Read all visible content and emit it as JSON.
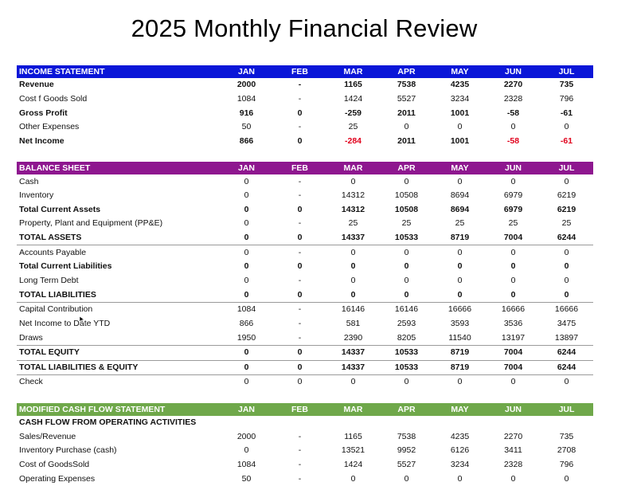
{
  "title": "2025 Monthly Financial Review",
  "colors": {
    "income_header": "#0a16d8",
    "balance_header": "#8e178f",
    "cashflow_header": "#6fa84a",
    "negative": "#e0001b"
  },
  "months": [
    "JAN",
    "FEB",
    "MAR",
    "APR",
    "MAY",
    "JUN",
    "JUL"
  ],
  "income_statement": {
    "header": "INCOME STATEMENT",
    "rows": [
      {
        "label": "Revenue",
        "bold": true,
        "values": [
          "2000",
          "-",
          "1165",
          "7538",
          "4235",
          "2270",
          "735"
        ]
      },
      {
        "label": "Cost f Goods Sold",
        "values": [
          "1084",
          "-",
          "1424",
          "5527",
          "3234",
          "2328",
          "796"
        ]
      },
      {
        "label": "Gross Profit",
        "bold": true,
        "values": [
          "916",
          "0",
          "-259",
          "2011",
          "1001",
          "-58",
          "-61"
        ]
      },
      {
        "label": "Other Expenses",
        "values": [
          "50",
          "-",
          "25",
          "0",
          "0",
          "0",
          "0"
        ]
      },
      {
        "label": "Net Income",
        "bold": true,
        "values": [
          "866",
          "0",
          "-284",
          "2011",
          "1001",
          "-58",
          "-61"
        ],
        "red_negatives": true
      }
    ]
  },
  "balance_sheet": {
    "header": "BALANCE SHEET",
    "rows": [
      {
        "label": "Cash",
        "values": [
          "0",
          "-",
          "0",
          "0",
          "0",
          "0",
          "0"
        ]
      },
      {
        "label": "Inventory",
        "values": [
          "0",
          "-",
          "14312",
          "10508",
          "8694",
          "6979",
          "6219"
        ]
      },
      {
        "label": "Total Current Assets",
        "bold": true,
        "values": [
          "0",
          "0",
          "14312",
          "10508",
          "8694",
          "6979",
          "6219"
        ]
      },
      {
        "label": "Property, Plant and Equipment (PP&E)",
        "values": [
          "0",
          "-",
          "25",
          "25",
          "25",
          "25",
          "25"
        ]
      },
      {
        "label": "TOTAL  ASSETS",
        "bold": true,
        "sep": true,
        "values": [
          "0",
          "0",
          "14337",
          "10533",
          "8719",
          "7004",
          "6244"
        ]
      },
      {
        "label": "Accounts Payable",
        "values": [
          "0",
          "-",
          "0",
          "0",
          "0",
          "0",
          "0"
        ]
      },
      {
        "label": "Total Current Liabilities",
        "bold": true,
        "values": [
          "0",
          "0",
          "0",
          "0",
          "0",
          "0",
          "0"
        ]
      },
      {
        "label": "Long Term Debt",
        "values": [
          "0",
          "-",
          "0",
          "0",
          "0",
          "0",
          "0"
        ]
      },
      {
        "label": "TOTAL LIABILITIES",
        "bold": true,
        "sep": true,
        "values": [
          "0",
          "0",
          "0",
          "0",
          "0",
          "0",
          "0"
        ]
      },
      {
        "label": "Capital Contribution",
        "values": [
          "1084",
          "-",
          "16146",
          "16146",
          "16666",
          "16666",
          "16666"
        ]
      },
      {
        "label": "Net Income to Date YTD",
        "values": [
          "866",
          "-",
          "581",
          "2593",
          "3593",
          "3536",
          "3475"
        ]
      },
      {
        "label": "Draws",
        "sep": true,
        "values": [
          "1950",
          "-",
          "2390",
          "8205",
          "11540",
          "13197",
          "13897"
        ]
      },
      {
        "label": "TOTAL EQUITY",
        "bold": true,
        "sep": true,
        "values": [
          "0",
          "0",
          "14337",
          "10533",
          "8719",
          "7004",
          "6244"
        ]
      },
      {
        "label": "TOTAL LIABILITIES & EQUITY",
        "bold": true,
        "sep": true,
        "values": [
          "0",
          "0",
          "14337",
          "10533",
          "8719",
          "7004",
          "6244"
        ]
      },
      {
        "label": "Check",
        "values": [
          "0",
          "0",
          "0",
          "0",
          "0",
          "0",
          "0"
        ]
      }
    ]
  },
  "cash_flow": {
    "header": "MODIFIED CASH FLOW STATEMENT",
    "subheader": "CASH FLOW FROM OPERATING ACTIVITIES",
    "rows": [
      {
        "label": "Sales/Revenue",
        "values": [
          "2000",
          "-",
          "1165",
          "7538",
          "4235",
          "2270",
          "735"
        ]
      },
      {
        "label": "Inventory Purchase (cash)",
        "values": [
          "0",
          "-",
          "13521",
          "9952",
          "6126",
          "3411",
          "2708"
        ]
      },
      {
        "label": "Cost of GoodsSold",
        "values": [
          "1084",
          "-",
          "1424",
          "5527",
          "3234",
          "2328",
          "796"
        ]
      },
      {
        "label": "Operating Expenses",
        "values": [
          "50",
          "-",
          "0",
          "0",
          "0",
          "0",
          "0"
        ]
      }
    ]
  }
}
